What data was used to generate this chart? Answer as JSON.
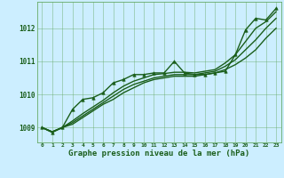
{
  "xlabel": "Graphe pression niveau de la mer (hPa)",
  "background_color": "#cceeff",
  "grid_color": "#66aa66",
  "line_color": "#1a5e1a",
  "xlim": [
    -0.5,
    23.5
  ],
  "ylim": [
    1008.55,
    1012.8
  ],
  "yticks": [
    1009,
    1010,
    1011,
    1012
  ],
  "xticks": [
    0,
    1,
    2,
    3,
    4,
    5,
    6,
    7,
    8,
    9,
    10,
    11,
    12,
    13,
    14,
    15,
    16,
    17,
    18,
    19,
    20,
    21,
    22,
    23
  ],
  "series": [
    {
      "x": [
        0,
        1,
        2,
        3,
        4,
        5,
        6,
        7,
        8,
        9,
        10,
        11,
        12,
        13,
        14,
        15,
        16,
        17,
        18,
        19,
        20,
        21,
        22,
        23
      ],
      "y": [
        1009.0,
        1008.85,
        1009.0,
        1009.55,
        1009.85,
        1009.9,
        1010.05,
        1010.35,
        1010.45,
        1010.6,
        1010.6,
        1010.65,
        1010.65,
        1011.0,
        1010.65,
        1010.6,
        1010.6,
        1010.65,
        1010.7,
        1011.2,
        1011.95,
        1012.3,
        1012.25,
        1012.6
      ],
      "marker": "^",
      "markersize": 2.5,
      "linewidth": 1.0
    },
    {
      "x": [
        0,
        1,
        2,
        3,
        4,
        5,
        6,
        7,
        8,
        9,
        10,
        11,
        12,
        13,
        14,
        15,
        16,
        17,
        18,
        19,
        20,
        21,
        22,
        23
      ],
      "y": [
        1009.0,
        1008.87,
        1009.0,
        1009.1,
        1009.3,
        1009.5,
        1009.7,
        1009.85,
        1010.05,
        1010.2,
        1010.35,
        1010.45,
        1010.5,
        1010.55,
        1010.55,
        1010.55,
        1010.6,
        1010.65,
        1010.75,
        1010.9,
        1011.1,
        1011.35,
        1011.7,
        1012.0
      ],
      "marker": null,
      "markersize": 0,
      "linewidth": 1.0
    },
    {
      "x": [
        0,
        1,
        2,
        3,
        4,
        5,
        6,
        7,
        8,
        9,
        10,
        11,
        12,
        13,
        14,
        15,
        16,
        17,
        18,
        19,
        20,
        21,
        22,
        23
      ],
      "y": [
        1009.0,
        1008.87,
        1009.0,
        1009.15,
        1009.35,
        1009.55,
        1009.75,
        1009.95,
        1010.15,
        1010.3,
        1010.4,
        1010.5,
        1010.55,
        1010.6,
        1010.6,
        1010.6,
        1010.65,
        1010.7,
        1010.85,
        1011.05,
        1011.35,
        1011.65,
        1012.0,
        1012.3
      ],
      "marker": null,
      "markersize": 0,
      "linewidth": 1.0
    },
    {
      "x": [
        0,
        1,
        2,
        3,
        4,
        5,
        6,
        7,
        8,
        9,
        10,
        11,
        12,
        13,
        14,
        15,
        16,
        17,
        18,
        19,
        20,
        21,
        22,
        23
      ],
      "y": [
        1009.0,
        1008.87,
        1009.0,
        1009.2,
        1009.42,
        1009.62,
        1009.82,
        1010.05,
        1010.25,
        1010.4,
        1010.5,
        1010.6,
        1010.63,
        1010.67,
        1010.67,
        1010.65,
        1010.7,
        1010.75,
        1010.95,
        1011.2,
        1011.6,
        1012.0,
        1012.2,
        1012.5
      ],
      "marker": null,
      "markersize": 0,
      "linewidth": 1.0
    }
  ]
}
